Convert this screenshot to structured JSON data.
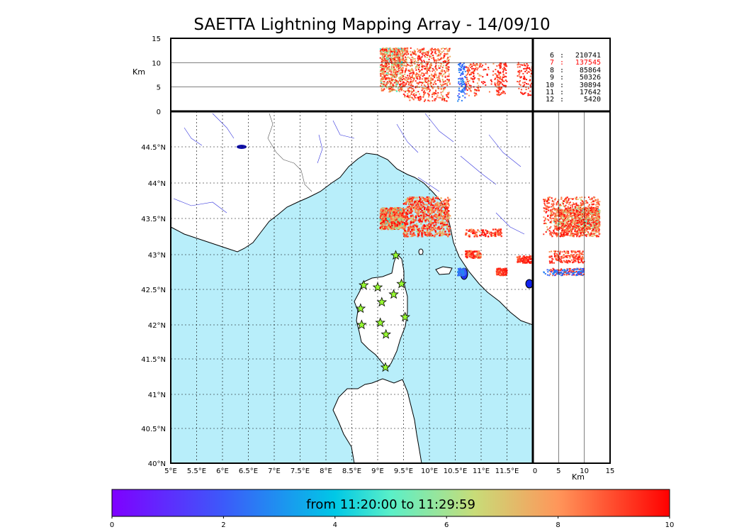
{
  "title": "SAETTA Lightning Mapping Array - 14/09/10",
  "altitude_unit": "Km",
  "colorbar": {
    "label": "from 11:20:00 to 11:29:59",
    "ticks": [
      "0",
      "2",
      "4",
      "6",
      "8",
      "10"
    ],
    "range": [
      0,
      10
    ],
    "colormap": "rainbow"
  },
  "stats": [
    {
      "level": "6",
      "count": "210741",
      "highlight": false
    },
    {
      "level": "7",
      "count": "137545",
      "highlight": true
    },
    {
      "level": "8",
      "count": "85864",
      "highlight": false
    },
    {
      "level": "9",
      "count": "50326",
      "highlight": false
    },
    {
      "level": "10",
      "count": "30894",
      "highlight": false
    },
    {
      "level": "11",
      "count": "17642",
      "highlight": false
    },
    {
      "level": "12",
      "count": "5420",
      "highlight": false
    }
  ],
  "colors": {
    "sea": "#b8eefa",
    "land": "#ffffff",
    "coast": "#000000",
    "rivers": "#3333dd",
    "station_fill": "#99ff33",
    "highlight_text": "#ff0000"
  },
  "chart_data": {
    "type": "scatter",
    "title": "SAETTA Lightning Mapping Array - 14/09/10",
    "map": {
      "lon_range": [
        5.0,
        12.0
      ],
      "lat_range": [
        40.0,
        45.0
      ],
      "lon_ticks": [
        "5°E",
        "5.5°E",
        "6°E",
        "6.5°E",
        "7°E",
        "7.5°E",
        "8°E",
        "8.5°E",
        "9°E",
        "9.5°E",
        "10°E",
        "10.5°E",
        "11°E",
        "11.5°E"
      ],
      "lat_ticks": [
        "40°N",
        "40.5°N",
        "41°N",
        "41.5°N",
        "42°N",
        "42.5°N",
        "43°N",
        "43.5°N",
        "44°N",
        "44.5°N"
      ],
      "grid": true,
      "grid_style": "dotted"
    },
    "altitude_axis": {
      "label": "Km",
      "range": [
        0,
        15
      ],
      "ticks": [
        "0",
        "5",
        "10",
        "15"
      ]
    },
    "stations": [
      {
        "lon": 9.35,
        "lat": 42.99
      },
      {
        "lon": 8.73,
        "lat": 42.56
      },
      {
        "lon": 9.0,
        "lat": 42.53
      },
      {
        "lon": 9.46,
        "lat": 42.58
      },
      {
        "lon": 9.31,
        "lat": 42.43
      },
      {
        "lon": 9.08,
        "lat": 42.32
      },
      {
        "lon": 8.67,
        "lat": 42.23
      },
      {
        "lon": 9.53,
        "lat": 42.11
      },
      {
        "lon": 8.69,
        "lat": 42.0
      },
      {
        "lon": 9.05,
        "lat": 42.03
      },
      {
        "lon": 9.16,
        "lat": 41.86
      },
      {
        "lon": 9.15,
        "lat": 41.38
      }
    ],
    "source_clusters": [
      {
        "lon": [
          9.05,
          9.5
        ],
        "lat": [
          43.35,
          43.65
        ],
        "alt": [
          4,
          13
        ],
        "time": [
          4,
          10
        ]
      },
      {
        "lon": [
          9.5,
          10.4
        ],
        "lat": [
          43.25,
          43.8
        ],
        "alt": [
          2,
          13
        ],
        "time": [
          6,
          10
        ]
      },
      {
        "lon": [
          10.7,
          11.4
        ],
        "lat": [
          43.25,
          43.35
        ],
        "alt": [
          3,
          10
        ],
        "time": [
          7,
          10
        ]
      },
      {
        "lon": [
          10.7,
          11.0
        ],
        "lat": [
          42.95,
          43.05
        ],
        "alt": [
          3,
          10
        ],
        "time": [
          7,
          10
        ]
      },
      {
        "lon": [
          11.3,
          11.5
        ],
        "lat": [
          42.7,
          42.8
        ],
        "alt": [
          3,
          10
        ],
        "time": [
          8,
          10
        ]
      },
      {
        "lon": [
          11.7,
          12.0
        ],
        "lat": [
          42.88,
          42.98
        ],
        "alt": [
          3,
          10
        ],
        "time": [
          8,
          10
        ]
      },
      {
        "lon": [
          10.55,
          10.7
        ],
        "lat": [
          42.7,
          42.8
        ],
        "alt": [
          2,
          10
        ],
        "time": [
          1,
          3
        ]
      }
    ]
  }
}
